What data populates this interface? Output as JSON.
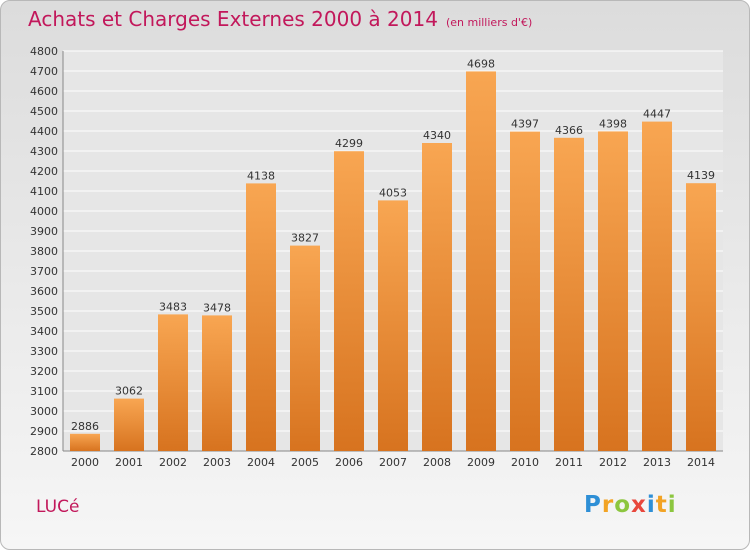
{
  "header": {
    "title": "Achats et Charges Externes 2000 à 2014",
    "subtitle": "(en milliers d'€)"
  },
  "footer": {
    "commune": "LUCé",
    "brand": "Proxiti",
    "brand_letters": [
      {
        "ch": "P",
        "color": "#2e8fd6"
      },
      {
        "ch": "r",
        "color": "#f2a324"
      },
      {
        "ch": "o",
        "color": "#8cc63f"
      },
      {
        "ch": "x",
        "color": "#e8473c"
      },
      {
        "ch": "i",
        "color": "#2e8fd6"
      },
      {
        "ch": "t",
        "color": "#f2a324"
      },
      {
        "ch": "i",
        "color": "#8cc63f"
      }
    ]
  },
  "colors": {
    "title": "#c2185b",
    "bar_top": "#f8a652",
    "bar_bottom": "#d7731f",
    "grid": "#ffffff",
    "text": "#333333"
  },
  "chart_data": {
    "type": "bar",
    "title": "Achats et Charges Externes 2000 à 2014",
    "categories": [
      "2000",
      "2001",
      "2002",
      "2003",
      "2004",
      "2005",
      "2006",
      "2007",
      "2008",
      "2009",
      "2010",
      "2011",
      "2012",
      "2013",
      "2014"
    ],
    "values": [
      2886,
      3062,
      3483,
      3478,
      4138,
      3827,
      4299,
      4053,
      4340,
      4698,
      4397,
      4366,
      4398,
      4447,
      4139
    ],
    "ylim": [
      2800,
      4800
    ],
    "ytick_step": 100,
    "grid": true,
    "data_labels": true
  }
}
